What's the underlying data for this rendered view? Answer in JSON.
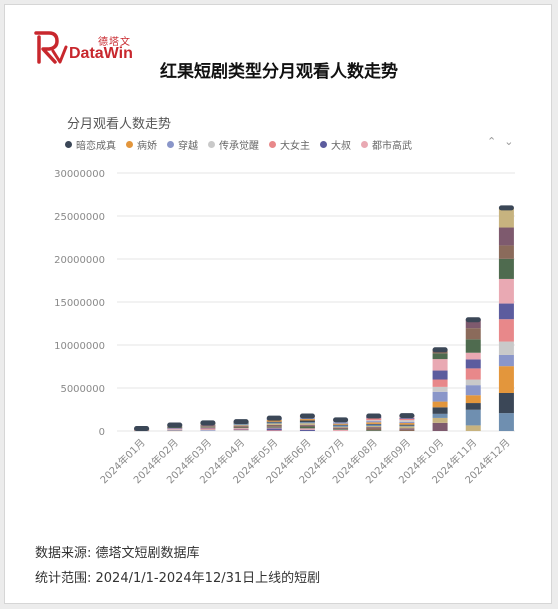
{
  "brand": {
    "cn": "德塔文",
    "en": "DataWin"
  },
  "page_title": "红果短剧类型分月观看人数走势",
  "colors": [
    "#3b4757",
    "#e3963c",
    "#8a96c9",
    "#c9c9c9",
    "#e8888a",
    "#5c5c9e",
    "#e9a9b3",
    "#4f6b4f",
    "#8b6b5b",
    "#7e5a6e",
    "#c7b37f",
    "#6f8fb0"
  ],
  "chart_data": {
    "type": "bar",
    "stacked": true,
    "title": "分月观看人数走势",
    "xlabel": "",
    "ylabel": "",
    "ylim": [
      0,
      30000000
    ],
    "yticks": [
      "30000000",
      "25000000",
      "20000000",
      "15000000",
      "10000000",
      "5000000",
      "0"
    ],
    "categories": [
      "2024年01月",
      "2024年02月",
      "2024年03月",
      "2024年04月",
      "2024年05月",
      "2024年06月",
      "2024年07月",
      "2024年08月",
      "2024年09月",
      "2024年10月",
      "2024年11月",
      "2024年12月"
    ],
    "totals": [
      350000,
      750000,
      1000000,
      1150000,
      1550000,
      1800000,
      1350000,
      1800000,
      1850000,
      9500000,
      13000000,
      26000000
    ],
    "legend": [
      "暗恋成真",
      "病娇",
      "穿越",
      "传承觉醒",
      "大女主",
      "大叔",
      "都市高武"
    ],
    "legend_position": "top-left",
    "grid": true
  },
  "footer": {
    "source": "数据来源: 德塔文短剧数据库",
    "range": "统计范围:   2024/1/1-2024年12/31日上线的短剧"
  }
}
